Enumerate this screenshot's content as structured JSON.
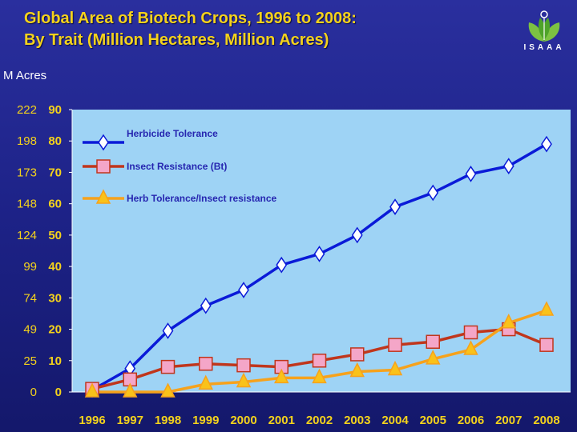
{
  "header": {
    "title_line1": "Global Area of Biotech Crops, 1996 to 2008:",
    "title_line2": "By Trait (Million Hectares, Million Acres)",
    "logo_text": "ISAAA"
  },
  "colors": {
    "title": "#f4d21c",
    "plot_bg": "#9ed3f5",
    "herbicide": "#0a1ad8",
    "insect": "#c0361c",
    "stacked": "#f6a21c"
  },
  "chart_data": {
    "type": "line",
    "title": "Global Area of Biotech Crops, 1996 to 2008: By Trait (Million Hectares, Million Acres)",
    "xlabel": "",
    "ylabel": "M Acres",
    "categories": [
      "1996",
      "1997",
      "1998",
      "1999",
      "2000",
      "2001",
      "2002",
      "2003",
      "2004",
      "2005",
      "2006",
      "2007",
      "2008"
    ],
    "ylim": [
      0,
      90
    ],
    "y_ticks_hectares": [
      "0",
      "10",
      "20",
      "30",
      "40",
      "50",
      "60",
      "70",
      "80",
      "90"
    ],
    "y_ticks_acres": [
      "0",
      "25",
      "49",
      "74",
      "99",
      "124",
      "148",
      "173",
      "198",
      "222"
    ],
    "series": [
      {
        "name": "Herbicide Tolerance",
        "marker": "diamond",
        "color": "#0a1ad8",
        "values": [
          0.6,
          7.5,
          19.5,
          27.5,
          32.5,
          40.5,
          44,
          50,
          59,
          63.5,
          69.5,
          72,
          79
        ]
      },
      {
        "name": "Insect Resistance (Bt)",
        "marker": "square",
        "color": "#c0361c",
        "values": [
          1,
          4,
          8,
          9,
          8.5,
          8,
          10,
          12,
          15,
          16,
          19,
          20,
          15
        ]
      },
      {
        "name": "Herb Tolerance/Insect resistance",
        "marker": "triangle",
        "color": "#f6a21c",
        "values": [
          0,
          0,
          0,
          2.5,
          3.2,
          4.5,
          4.5,
          6.5,
          7,
          10.5,
          13.5,
          22,
          26
        ]
      }
    ],
    "legend": "top-left"
  }
}
